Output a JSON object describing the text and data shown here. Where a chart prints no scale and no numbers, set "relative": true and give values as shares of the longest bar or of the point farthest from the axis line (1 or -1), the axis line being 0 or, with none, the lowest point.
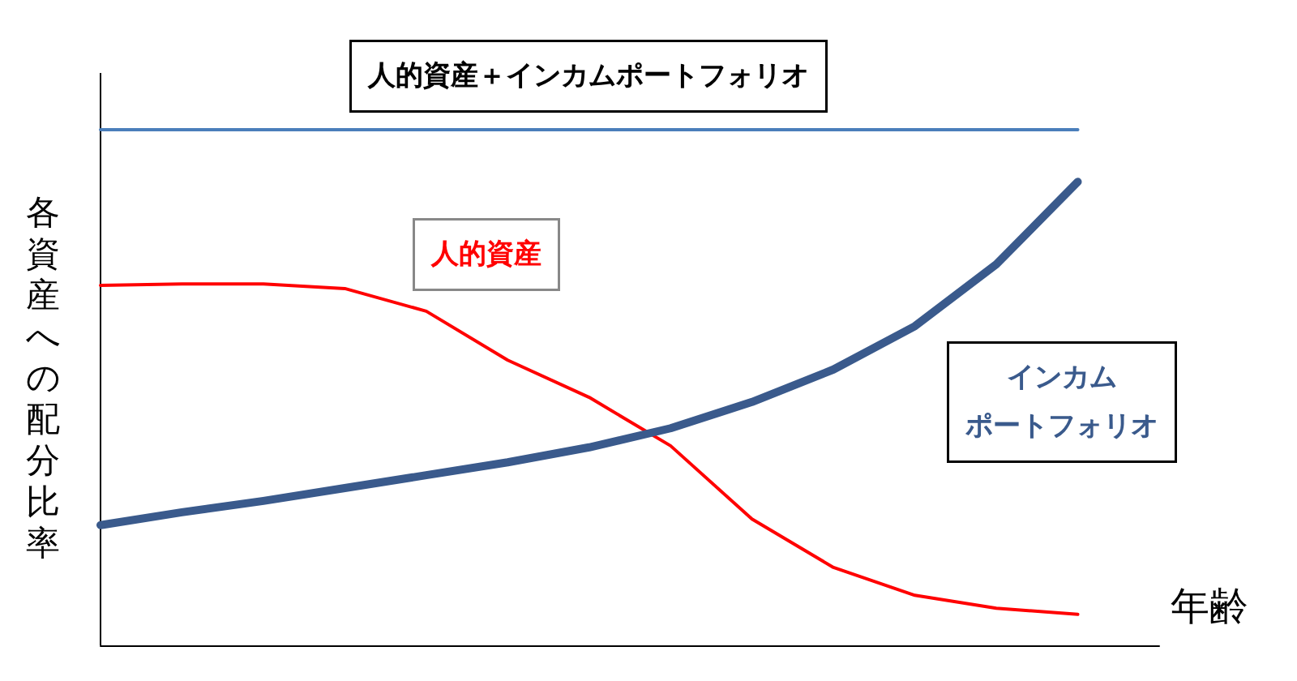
{
  "chart_data": {
    "type": "line",
    "relative": true,
    "ylabel": "各資産への配分比率",
    "xlabel": "年齢",
    "legend": false,
    "grid": false,
    "marker": "none",
    "categories": [
      null,
      null,
      null,
      null,
      null,
      null,
      null,
      null,
      null,
      null,
      null,
      null,
      null,
      null
    ],
    "series": [
      {
        "name": "人的資産＋インカムポートフォリオ",
        "color": "#4a7ebb",
        "values": [
          1,
          1,
          1,
          1,
          1,
          1,
          1,
          1,
          1,
          1,
          1,
          1,
          1,
          null
        ]
      },
      {
        "name": "人的資産",
        "color": "#ff0000",
        "values": [
          0.698,
          0.701,
          0.701,
          0.692,
          0.648,
          0.553,
          0.481,
          0.387,
          0.245,
          0.151,
          0.097,
          0.072,
          0.06,
          null
        ]
      },
      {
        "name": "インカムポートフォリオ",
        "color": "#3a5a8c",
        "values": [
          0.233,
          0.258,
          0.28,
          0.305,
          0.33,
          0.355,
          0.384,
          0.421,
          0.472,
          0.535,
          0.619,
          0.739,
          0.899,
          null
        ]
      }
    ]
  }
}
